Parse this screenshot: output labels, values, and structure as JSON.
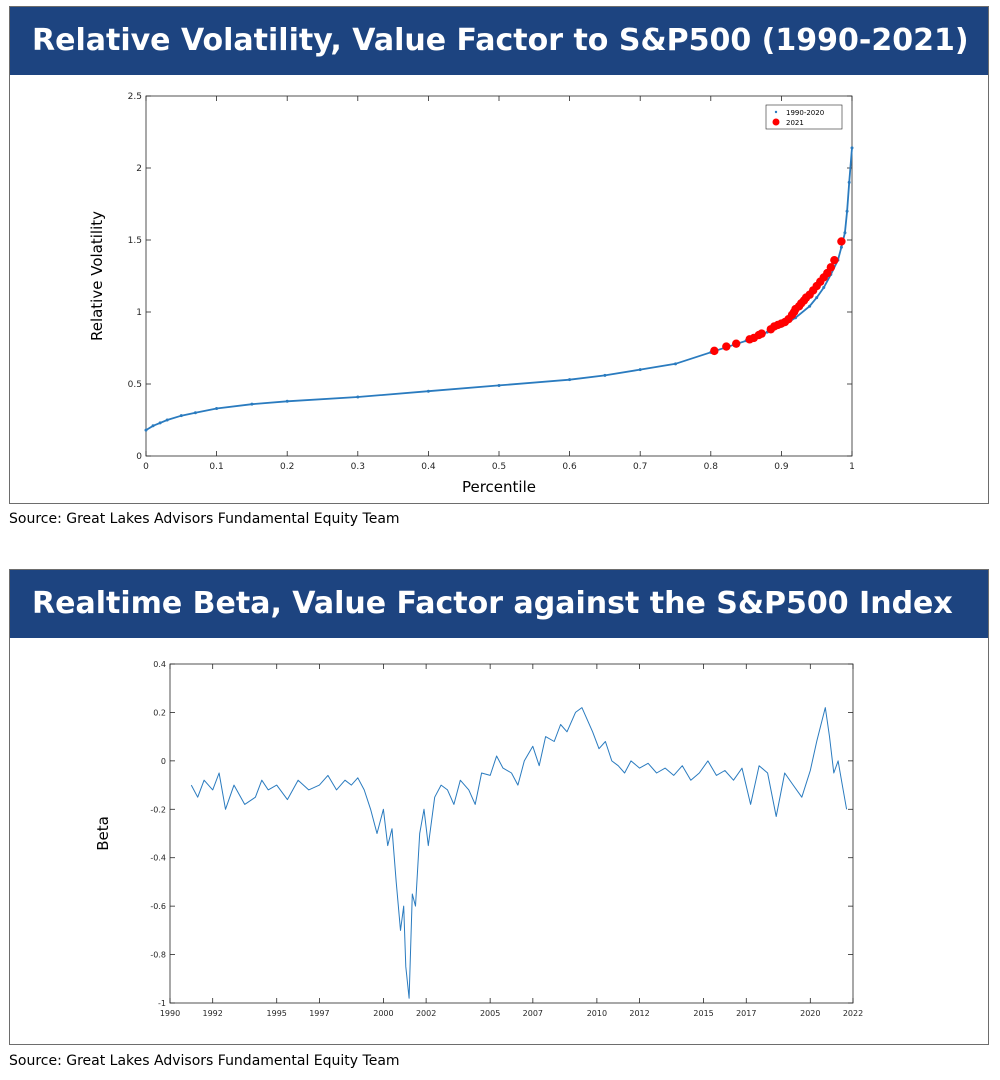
{
  "colors": {
    "banner": "#1d4480",
    "line": "#2a7bbf",
    "marker2021": "#ff0000"
  },
  "chart_data": [
    {
      "type": "scatter",
      "title": "Relative Volatility, Value Factor to S&P500 (1990-2021)",
      "xlabel": "Percentile",
      "ylabel": "Relative Volatility",
      "xlim": [
        0,
        1
      ],
      "ylim": [
        0,
        2.5
      ],
      "xticks": [
        0,
        0.1,
        0.2,
        0.3,
        0.4,
        0.5,
        0.6,
        0.7,
        0.8,
        0.9,
        1
      ],
      "yticks": [
        0,
        0.5,
        1,
        1.5,
        2,
        2.5
      ],
      "legend": "top-right",
      "series": [
        {
          "name": "1990-2020",
          "style": "dots",
          "x": [
            0,
            0.01,
            0.02,
            0.03,
            0.05,
            0.07,
            0.1,
            0.15,
            0.2,
            0.3,
            0.4,
            0.5,
            0.6,
            0.65,
            0.7,
            0.75,
            0.8,
            0.85,
            0.88,
            0.9,
            0.92,
            0.94,
            0.95,
            0.96,
            0.97,
            0.98,
            0.985,
            0.99,
            0.993,
            0.996,
            1.0
          ],
          "y": [
            0.18,
            0.21,
            0.23,
            0.25,
            0.28,
            0.3,
            0.33,
            0.36,
            0.38,
            0.41,
            0.45,
            0.49,
            0.53,
            0.56,
            0.6,
            0.64,
            0.72,
            0.8,
            0.86,
            0.9,
            0.96,
            1.04,
            1.1,
            1.17,
            1.26,
            1.36,
            1.45,
            1.55,
            1.7,
            1.9,
            2.14
          ]
        },
        {
          "name": "2021",
          "style": "markers",
          "x": [
            0.805,
            0.822,
            0.836,
            0.855,
            0.861,
            0.868,
            0.872,
            0.885,
            0.89,
            0.895,
            0.9,
            0.905,
            0.91,
            0.915,
            0.918,
            0.92,
            0.925,
            0.928,
            0.932,
            0.935,
            0.94,
            0.945,
            0.95,
            0.955,
            0.96,
            0.965,
            0.97,
            0.975,
            0.985
          ],
          "y": [
            0.73,
            0.76,
            0.78,
            0.81,
            0.82,
            0.84,
            0.85,
            0.88,
            0.9,
            0.91,
            0.92,
            0.93,
            0.95,
            0.98,
            1.0,
            1.02,
            1.04,
            1.06,
            1.08,
            1.1,
            1.12,
            1.15,
            1.18,
            1.21,
            1.24,
            1.27,
            1.31,
            1.36,
            1.49
          ]
        }
      ]
    },
    {
      "type": "line",
      "title": "Realtime Beta, Value Factor against the S&P500 Index",
      "xlabel": "",
      "ylabel": "Beta",
      "xlim": [
        1990,
        2022
      ],
      "ylim": [
        -1,
        0.4
      ],
      "xticks": [
        1990,
        1992,
        1995,
        1997,
        2000,
        2002,
        2005,
        2007,
        2010,
        2012,
        2015,
        2017,
        2020,
        2022
      ],
      "yticks": [
        -1,
        -0.8,
        -0.6,
        -0.4,
        -0.2,
        0,
        0.2,
        0.4
      ],
      "series": [
        {
          "name": "",
          "x": [
            1991.0,
            1991.3,
            1991.6,
            1992.0,
            1992.3,
            1992.6,
            1993.0,
            1993.5,
            1994.0,
            1994.3,
            1994.6,
            1995.0,
            1995.5,
            1996.0,
            1996.5,
            1997.0,
            1997.4,
            1997.8,
            1998.2,
            1998.5,
            1998.8,
            1999.1,
            1999.4,
            1999.7,
            2000.0,
            2000.2,
            2000.4,
            2000.6,
            2000.8,
            2000.95,
            2001.05,
            2001.2,
            2001.35,
            2001.5,
            2001.7,
            2001.9,
            2002.1,
            2002.4,
            2002.7,
            2003.0,
            2003.3,
            2003.6,
            2004.0,
            2004.3,
            2004.6,
            2005.0,
            2005.3,
            2005.6,
            2006.0,
            2006.3,
            2006.6,
            2007.0,
            2007.3,
            2007.6,
            2008.0,
            2008.3,
            2008.6,
            2009.0,
            2009.3,
            2009.5,
            2009.8,
            2010.1,
            2010.4,
            2010.7,
            2011.0,
            2011.3,
            2011.6,
            2012.0,
            2012.4,
            2012.8,
            2013.2,
            2013.6,
            2014.0,
            2014.4,
            2014.8,
            2015.2,
            2015.6,
            2016.0,
            2016.4,
            2016.8,
            2017.2,
            2017.6,
            2018.0,
            2018.4,
            2018.8,
            2019.2,
            2019.6,
            2020.0,
            2020.3,
            2020.5,
            2020.7,
            2020.9,
            2021.1,
            2021.3,
            2021.5,
            2021.7
          ],
          "y": [
            -0.1,
            -0.15,
            -0.08,
            -0.12,
            -0.05,
            -0.2,
            -0.1,
            -0.18,
            -0.15,
            -0.08,
            -0.12,
            -0.1,
            -0.16,
            -0.08,
            -0.12,
            -0.1,
            -0.06,
            -0.12,
            -0.08,
            -0.1,
            -0.07,
            -0.12,
            -0.2,
            -0.3,
            -0.2,
            -0.35,
            -0.28,
            -0.5,
            -0.7,
            -0.6,
            -0.85,
            -0.98,
            -0.55,
            -0.6,
            -0.3,
            -0.2,
            -0.35,
            -0.15,
            -0.1,
            -0.12,
            -0.18,
            -0.08,
            -0.12,
            -0.18,
            -0.05,
            -0.06,
            0.02,
            -0.03,
            -0.05,
            -0.1,
            0.0,
            0.06,
            -0.02,
            0.1,
            0.08,
            0.15,
            0.12,
            0.2,
            0.22,
            0.18,
            0.12,
            0.05,
            0.08,
            0.0,
            -0.02,
            -0.05,
            0.0,
            -0.03,
            -0.01,
            -0.05,
            -0.03,
            -0.06,
            -0.02,
            -0.08,
            -0.05,
            0.0,
            -0.06,
            -0.04,
            -0.08,
            -0.03,
            -0.18,
            -0.02,
            -0.05,
            -0.23,
            -0.05,
            -0.1,
            -0.15,
            -0.04,
            0.08,
            0.15,
            0.22,
            0.1,
            -0.05,
            0.0,
            -0.1,
            -0.2
          ]
        }
      ]
    }
  ],
  "panels": [
    {
      "title": "Relative Volatility, Value Factor to S&P500 (1990-2021)",
      "source": "Source: Great Lakes Advisors Fundamental Equity Team"
    },
    {
      "title": "Realtime Beta, Value Factor against the S&P500 Index",
      "source": "Source: Great Lakes Advisors Fundamental Equity Team"
    }
  ]
}
